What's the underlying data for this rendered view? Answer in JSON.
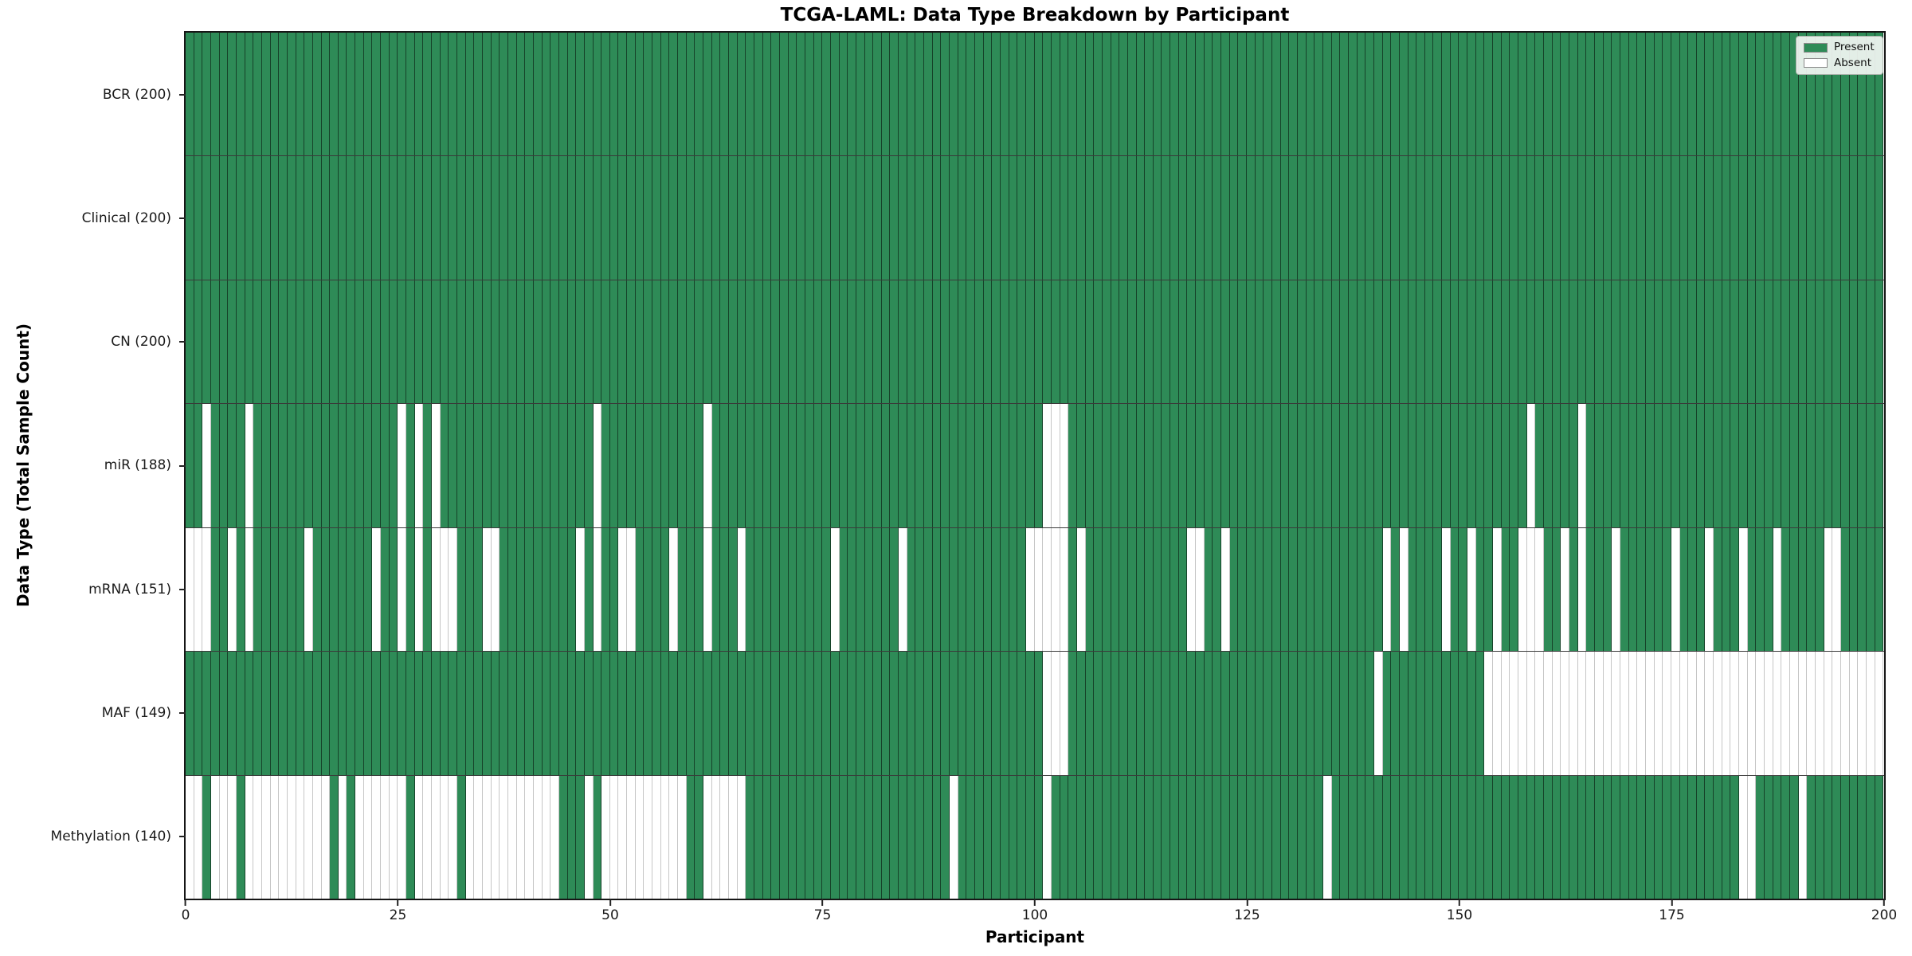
{
  "chart_data": {
    "type": "heatmap",
    "title": "TCGA-LAML: Data Type Breakdown by Participant",
    "xlabel": "Participant",
    "ylabel": "Data Type (Total Sample Count)",
    "n_participants": 200,
    "x_ticks": [
      0,
      25,
      50,
      75,
      100,
      125,
      150,
      175,
      200
    ],
    "grid": "per-cell vertical borders, horizontal row separators",
    "legend_position": "upper right",
    "legend": {
      "present_label": "Present",
      "absent_label": "Absent"
    },
    "colors": {
      "present": "#2e8b57",
      "absent": "#ffffff",
      "cell_edge_on_green": "rgba(0,0,0,0.52)",
      "cell_edge_on_white": "#c6c6c6",
      "row_separator": "#3a3a3a",
      "spine": "#161616",
      "legend_bg": "rgba(243,246,243,0.92)"
    },
    "rows": [
      {
        "name": "BCR",
        "label": "BCR (200)",
        "total": 200,
        "absent": []
      },
      {
        "name": "Clinical",
        "label": "Clinical (200)",
        "total": 200,
        "absent": []
      },
      {
        "name": "CN",
        "label": "CN (200)",
        "total": 200,
        "absent": []
      },
      {
        "name": "miR",
        "label": "miR (188)",
        "total": 188,
        "absent": [
          2,
          7,
          25,
          27,
          29,
          48,
          61,
          101,
          102,
          103,
          158,
          164
        ]
      },
      {
        "name": "mRNA",
        "label": "mRNA (151)",
        "total": 151,
        "absent": [
          0,
          1,
          2,
          5,
          7,
          14,
          22,
          25,
          27,
          29,
          30,
          31,
          35,
          36,
          46,
          48,
          51,
          52,
          57,
          61,
          65,
          76,
          84,
          99,
          100,
          101,
          102,
          103,
          105,
          118,
          119,
          122,
          141,
          143,
          148,
          151,
          154,
          157,
          158,
          159,
          162,
          164,
          168,
          175,
          179,
          183,
          187,
          193,
          194
        ]
      },
      {
        "name": "MAF",
        "label": "MAF (149)",
        "total": 149,
        "absent": [
          101,
          102,
          103,
          140,
          153,
          154,
          155,
          156,
          157,
          158,
          159,
          160,
          161,
          162,
          163,
          164,
          165,
          166,
          167,
          168,
          169,
          170,
          171,
          172,
          173,
          174,
          175,
          176,
          177,
          178,
          179,
          180,
          181,
          182,
          183,
          184,
          185,
          186,
          187,
          188,
          189,
          190,
          191,
          192,
          193,
          194,
          195,
          196,
          197,
          198,
          199
        ]
      },
      {
        "name": "Methylation",
        "label": "Methylation (140)",
        "total": 140,
        "absent": [
          0,
          1,
          3,
          4,
          5,
          7,
          8,
          9,
          10,
          11,
          12,
          13,
          14,
          15,
          16,
          18,
          20,
          21,
          22,
          23,
          24,
          25,
          27,
          28,
          29,
          30,
          31,
          33,
          34,
          35,
          36,
          37,
          38,
          39,
          40,
          41,
          42,
          43,
          47,
          49,
          50,
          51,
          52,
          53,
          54,
          55,
          56,
          57,
          58,
          61,
          62,
          63,
          64,
          65,
          90,
          101,
          134,
          183,
          184,
          190
        ]
      }
    ]
  }
}
